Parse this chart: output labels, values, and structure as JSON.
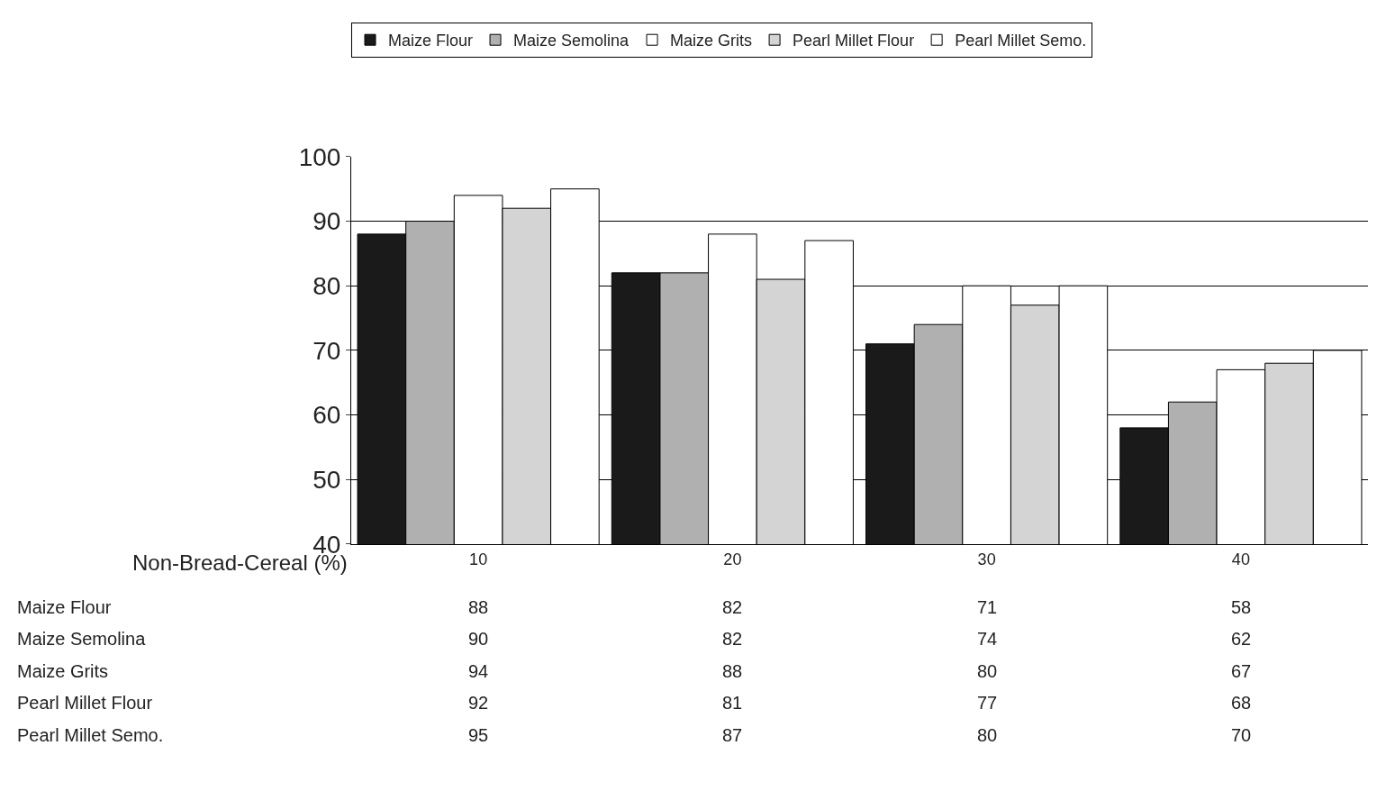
{
  "chart_data": {
    "type": "bar",
    "xlabel": "Non-Bread-Cereal (%)",
    "categories": [
      "10",
      "20",
      "30",
      "40"
    ],
    "series": [
      {
        "name": "Maize Flour",
        "color": "#1a1a1a",
        "values": [
          88,
          82,
          71,
          58
        ]
      },
      {
        "name": "Maize Semolina",
        "color": "#b0b0b0",
        "values": [
          90,
          82,
          74,
          62
        ]
      },
      {
        "name": "Maize Grits",
        "color": "#ffffff",
        "values": [
          94,
          88,
          80,
          67
        ]
      },
      {
        "name": "Pearl Millet Flour",
        "color": "#d4d4d4",
        "values": [
          92,
          81,
          77,
          68
        ]
      },
      {
        "name": "Pearl Millet Semo.",
        "color": "#ffffff",
        "values": [
          95,
          87,
          80,
          70
        ]
      }
    ],
    "ylim": [
      40,
      100
    ],
    "yticks": [
      40,
      50,
      60,
      70,
      80,
      90,
      100
    ],
    "grid": "y",
    "legend": "top",
    "data_labels": true
  }
}
